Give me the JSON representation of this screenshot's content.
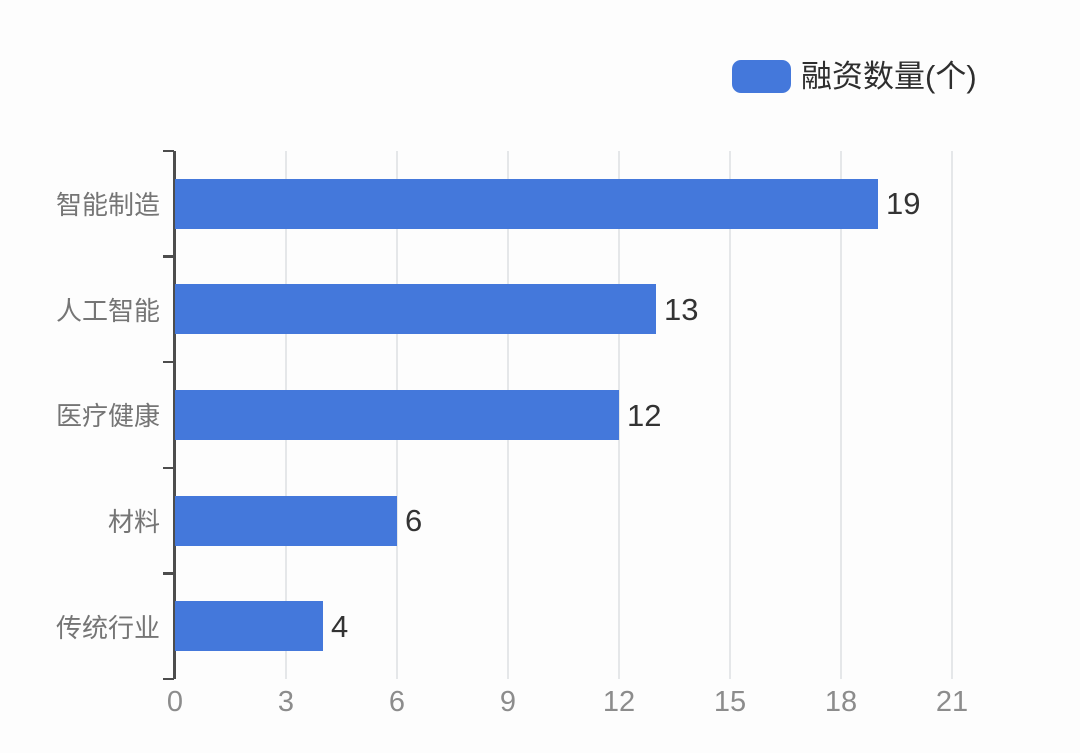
{
  "legend": {
    "label": "融资数量(个)",
    "swatch_color": "#4478DB"
  },
  "chart_data": {
    "type": "bar",
    "orientation": "horizontal",
    "title": "",
    "series_name": "融资数量(个)",
    "categories": [
      "智能制造",
      "人工智能",
      "医疗健康",
      "材料",
      "传统行业"
    ],
    "values": [
      19,
      13,
      12,
      6,
      4
    ],
    "data_labels": [
      "19",
      "13",
      "12",
      "6",
      "4"
    ],
    "xlabel": "",
    "ylabel": "",
    "xlim": [
      0,
      21
    ],
    "x_ticks": [
      0,
      3,
      6,
      9,
      12,
      15,
      18,
      21
    ],
    "grid": "vertical-gridlines-on",
    "legend_position": "top-right",
    "bar_color": "#4478DB"
  },
  "colors": {
    "background": "#fdfdfd",
    "bar": "#4478DB",
    "axis_line": "#4d4d4d",
    "gridline": "#e5e7e9",
    "category_label": "#757575",
    "x_tick_label": "#8c8c8c",
    "value_label": "#333333",
    "legend_text": "#2e2e2e"
  }
}
